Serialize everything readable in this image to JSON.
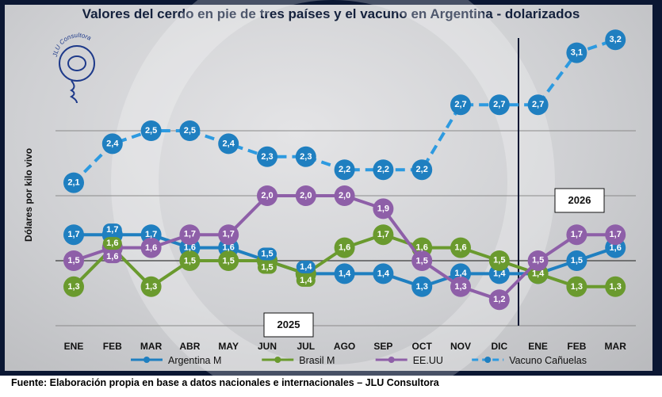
{
  "chart_data": {
    "type": "line",
    "title": "Valores del cerdo en pie de tres países y el vacuno en Argentina - dolarizados",
    "ylabel": "Dólares por kilo vivo",
    "xlabel": "",
    "categories": [
      "ENE",
      "FEB",
      "MAR",
      "ABR",
      "MAY",
      "JUN",
      "JUL",
      "AGO",
      "SEP",
      "OCT",
      "NOV",
      "DIC",
      "ENE",
      "FEB",
      "MAR"
    ],
    "ylim": [
      1.0,
      3.3
    ],
    "grid": true,
    "legend_placement": "bottom",
    "year_labels": [
      "2025",
      "2026"
    ],
    "series": [
      {
        "name": "Argentina M",
        "color": "#1f7fc0",
        "dashed": false,
        "values": [
          1.7,
          1.7,
          1.7,
          1.6,
          1.6,
          1.5,
          1.4,
          1.4,
          1.4,
          1.3,
          1.4,
          1.4,
          1.4,
          1.5,
          1.6
        ],
        "labels": [
          "1,7",
          "1,7",
          "1,7",
          "1,6",
          "1,6",
          "1,5",
          "1,4",
          "1,4",
          "1,4",
          "1,3",
          "1,4",
          "1,4",
          "",
          "1,5",
          "1,6"
        ]
      },
      {
        "name": "Brasil M",
        "color": "#6a9a2e",
        "dashed": false,
        "values": [
          1.3,
          1.6,
          1.3,
          1.5,
          1.5,
          1.5,
          1.4,
          1.6,
          1.7,
          1.6,
          1.6,
          1.5,
          1.4,
          1.3,
          1.3
        ],
        "labels": [
          "1,3",
          "1,6",
          "1,3",
          "1,5",
          "1,5",
          "1,5",
          "1,4",
          "1,6",
          "1,7",
          "1,6",
          "1,6",
          "1,5",
          "1,4",
          "1,3",
          "1,3"
        ]
      },
      {
        "name": "EE.UU",
        "color": "#8e5fa8",
        "dashed": false,
        "values": [
          1.5,
          1.6,
          1.6,
          1.7,
          1.7,
          2.0,
          2.0,
          2.0,
          1.9,
          1.5,
          1.3,
          1.2,
          1.5,
          1.7,
          1.7
        ],
        "labels": [
          "1,5",
          "1,6",
          "1,6",
          "1,7",
          "1,7",
          "2,0",
          "2,0",
          "2,0",
          "1,9",
          "1,5",
          "1,3",
          "1,2",
          "1,5",
          "1,7",
          "1,7"
        ]
      },
      {
        "name": "Vacuno Cañuelas",
        "color": "#1f7fc0",
        "dashed": true,
        "values": [
          2.1,
          2.4,
          2.5,
          2.5,
          2.4,
          2.3,
          2.3,
          2.2,
          2.2,
          2.2,
          2.7,
          2.7,
          2.7,
          3.1,
          3.2
        ],
        "labels": [
          "2,1",
          "2,4",
          "2,5",
          "2,5",
          "2,4",
          "2,3",
          "2,3",
          "2,2",
          "2,2",
          "2,2",
          "2,7",
          "2,7",
          "2,7",
          "3,1",
          "3,2"
        ]
      }
    ]
  },
  "logo_text": "JLU Consultora",
  "footer": "Fuente: Elaboración propia en base a datos nacionales e internacionales – JLU Consultora"
}
